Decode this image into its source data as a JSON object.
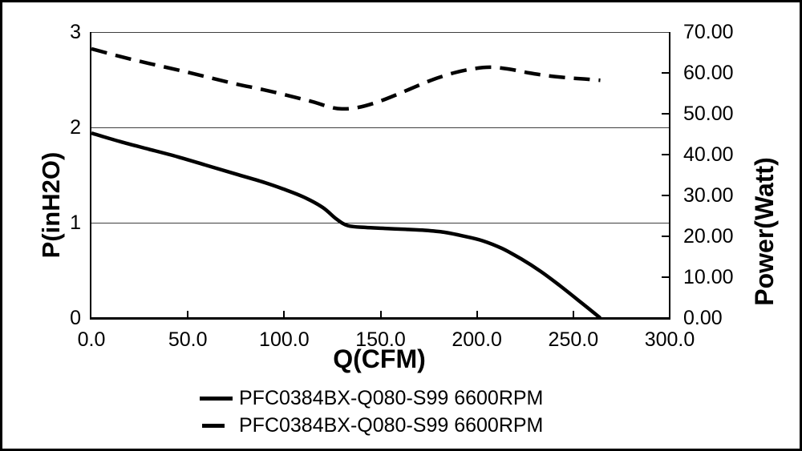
{
  "chart_data": {
    "type": "line",
    "title": "",
    "xlabel": "Q(CFM)",
    "ylabel_left": "P(inH2O)",
    "ylabel_right": "Power(Watt)",
    "xlim": [
      0,
      300
    ],
    "ylim_left": [
      0,
      3
    ],
    "ylim_right": [
      0,
      70
    ],
    "x_ticks": [
      "0.0",
      "50.0",
      "100.0",
      "150.0",
      "200.0",
      "250.0",
      "300.0"
    ],
    "y_left_ticks": [
      "3",
      "2",
      "1",
      "0"
    ],
    "y_right_ticks": [
      "70.00",
      "60.00",
      "50.00",
      "40.00",
      "30.00",
      "20.00",
      "10.00",
      "0.00"
    ],
    "grid": "horizontal",
    "grid_values_left": [
      1,
      2,
      3
    ],
    "x_inner_tick_values": [
      50,
      100,
      150,
      200,
      250
    ],
    "right_inner_tick_values": [
      10,
      20,
      30,
      40,
      50,
      60
    ],
    "legend_position": "bottom",
    "series": [
      {
        "name": "PFC0384BX-Q080-S99 6600RPM",
        "style": "solid",
        "axis": "left",
        "unit": "inH2O",
        "points": [
          [
            0,
            1.94
          ],
          [
            15,
            1.85
          ],
          [
            30,
            1.77
          ],
          [
            45,
            1.69
          ],
          [
            60,
            1.6
          ],
          [
            75,
            1.51
          ],
          [
            90,
            1.42
          ],
          [
            100,
            1.35
          ],
          [
            110,
            1.27
          ],
          [
            120,
            1.16
          ],
          [
            127,
            1.04
          ],
          [
            133,
            0.97
          ],
          [
            142,
            0.95
          ],
          [
            152,
            0.94
          ],
          [
            163,
            0.93
          ],
          [
            173,
            0.92
          ],
          [
            183,
            0.9
          ],
          [
            193,
            0.86
          ],
          [
            203,
            0.81
          ],
          [
            213,
            0.73
          ],
          [
            223,
            0.62
          ],
          [
            233,
            0.49
          ],
          [
            243,
            0.34
          ],
          [
            253,
            0.18
          ],
          [
            264,
            0.0
          ]
        ]
      },
      {
        "name": "PFC0384BX-Q080-S99 6600RPM",
        "style": "dashed",
        "axis": "right",
        "unit": "Watt",
        "points": [
          [
            0,
            65.9
          ],
          [
            15,
            64.0
          ],
          [
            30,
            62.3
          ],
          [
            45,
            60.7
          ],
          [
            60,
            59.0
          ],
          [
            75,
            57.3
          ],
          [
            90,
            55.8
          ],
          [
            105,
            54.1
          ],
          [
            115,
            52.9
          ],
          [
            124,
            51.6
          ],
          [
            130,
            51.2
          ],
          [
            138,
            51.5
          ],
          [
            148,
            52.8
          ],
          [
            158,
            54.6
          ],
          [
            168,
            56.6
          ],
          [
            178,
            58.5
          ],
          [
            188,
            60.0
          ],
          [
            198,
            61.0
          ],
          [
            207,
            61.4
          ],
          [
            217,
            60.9
          ],
          [
            227,
            60.0
          ],
          [
            237,
            59.3
          ],
          [
            247,
            58.8
          ],
          [
            256,
            58.5
          ],
          [
            264,
            58.2
          ]
        ]
      }
    ]
  },
  "colors": {
    "line": "#000000",
    "grid": "#3f3f3f",
    "axis": "#000000",
    "background": "#ffffff",
    "border": "#000000"
  }
}
